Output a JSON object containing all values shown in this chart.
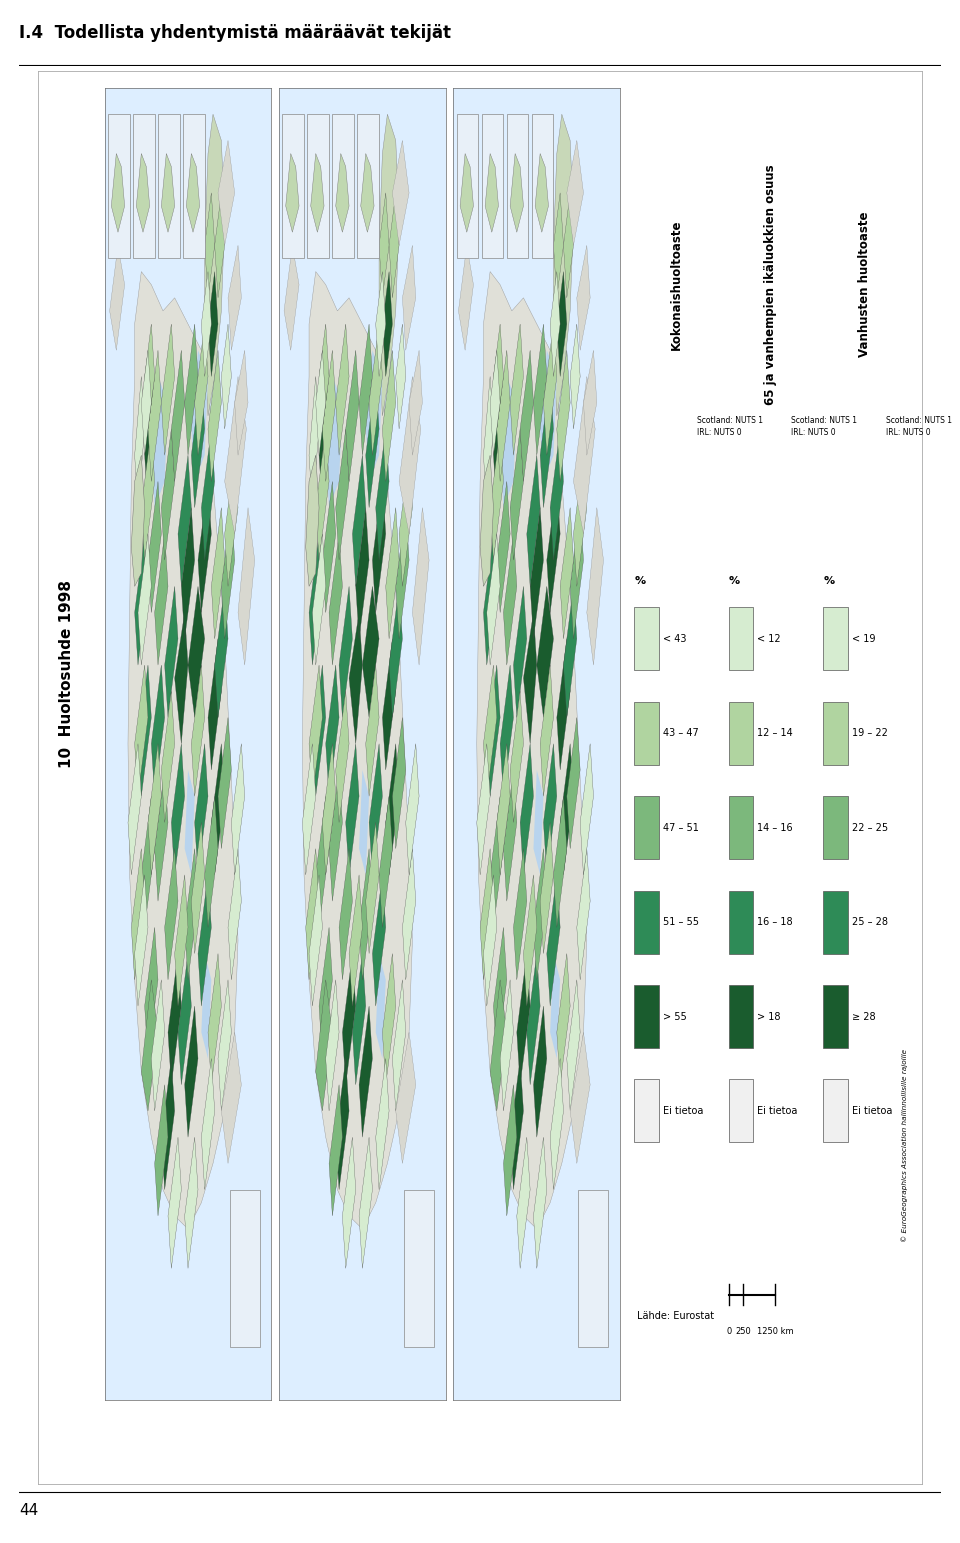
{
  "title": "I.4  Todellista yhdentymistä määräävät tekijät",
  "page_number": "44",
  "section_title": "10  Huoltosuhde 1998",
  "bg_color": "#ffffff",
  "outer_frame_color": "#cccccc",
  "map_bg": "#ffffff",
  "map_border": "#888888",
  "panel_left": {
    "title": "Kokonaishuoltoaste",
    "legend_title": "%",
    "legend_items": [
      {
        "label": "< 43",
        "color": "#d6ecd0"
      },
      {
        "label": "43 – 47",
        "color": "#b0d4a0"
      },
      {
        "label": "47 – 51",
        "color": "#7cb87c"
      },
      {
        "label": "51 – 55",
        "color": "#2e8b57"
      },
      {
        "label": "> 55",
        "color": "#1a5c2e"
      },
      {
        "label": "Ei tietoa",
        "color": "#f0f0f0"
      }
    ],
    "nuts_note": "Scotland: NUTS 1\nIRL: NUTS 0",
    "source": "Lähde: Eurostat"
  },
  "panel_middle": {
    "title": "65 ja vanhempien ikäluokkien osuus",
    "legend_title": "%",
    "legend_items": [
      {
        "label": "< 12",
        "color": "#d6ecd0"
      },
      {
        "label": "12 – 14",
        "color": "#b0d4a0"
      },
      {
        "label": "14 – 16",
        "color": "#7cb87c"
      },
      {
        "label": "16 – 18",
        "color": "#2e8b57"
      },
      {
        "label": "> 18",
        "color": "#1a5c2e"
      },
      {
        "label": "Ei tietoa",
        "color": "#f0f0f0"
      }
    ],
    "nuts_note": "Scotland: NUTS 1\nIRL: NUTS 0",
    "scale_label_0": "0",
    "scale_label_250": "250",
    "scale_label_1250": "1250 km"
  },
  "panel_right": {
    "title": "Vanhusten huoltoaste",
    "legend_title": "%",
    "legend_items": [
      {
        "label": "< 19",
        "color": "#d6ecd0"
      },
      {
        "label": "19 – 22",
        "color": "#b0d4a0"
      },
      {
        "label": "22 – 25",
        "color": "#7cb87c"
      },
      {
        "label": "25 – 28",
        "color": "#2e8b57"
      },
      {
        "label": "≥ 28",
        "color": "#1a5c2e"
      },
      {
        "label": "Ei tietoa",
        "color": "#f0f0f0"
      }
    ],
    "nuts_note": "Scotland: NUTS 1\nIRL: NUTS 0",
    "copyright": "© EuroGeographics Association hallinnollisille rajoille"
  }
}
